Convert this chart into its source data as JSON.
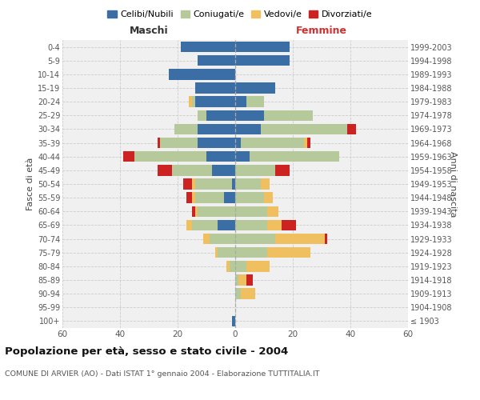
{
  "age_groups": [
    "100+",
    "95-99",
    "90-94",
    "85-89",
    "80-84",
    "75-79",
    "70-74",
    "65-69",
    "60-64",
    "55-59",
    "50-54",
    "45-49",
    "40-44",
    "35-39",
    "30-34",
    "25-29",
    "20-24",
    "15-19",
    "10-14",
    "5-9",
    "0-4"
  ],
  "birth_years": [
    "≤ 1903",
    "1904-1908",
    "1909-1913",
    "1914-1918",
    "1919-1923",
    "1924-1928",
    "1929-1933",
    "1934-1938",
    "1939-1943",
    "1944-1948",
    "1949-1953",
    "1954-1958",
    "1959-1963",
    "1964-1968",
    "1969-1973",
    "1974-1978",
    "1979-1983",
    "1984-1988",
    "1989-1993",
    "1994-1998",
    "1999-2003"
  ],
  "maschi": {
    "celibi": [
      1,
      0,
      0,
      0,
      0,
      0,
      0,
      6,
      0,
      4,
      1,
      8,
      10,
      13,
      13,
      10,
      14,
      14,
      23,
      13,
      19
    ],
    "coniugati": [
      0,
      0,
      0,
      0,
      2,
      6,
      9,
      9,
      13,
      10,
      13,
      14,
      25,
      13,
      8,
      3,
      1,
      0,
      0,
      0,
      0
    ],
    "vedovi": [
      0,
      0,
      0,
      0,
      1,
      1,
      2,
      2,
      1,
      1,
      1,
      0,
      0,
      0,
      0,
      0,
      1,
      0,
      0,
      0,
      0
    ],
    "divorziati": [
      0,
      0,
      0,
      0,
      0,
      0,
      0,
      0,
      1,
      2,
      3,
      5,
      4,
      1,
      0,
      0,
      0,
      0,
      0,
      0,
      0
    ]
  },
  "femmine": {
    "nubili": [
      0,
      0,
      0,
      0,
      0,
      0,
      0,
      0,
      0,
      0,
      0,
      0,
      5,
      2,
      9,
      10,
      4,
      14,
      0,
      19,
      19
    ],
    "coniugate": [
      0,
      0,
      2,
      1,
      4,
      11,
      14,
      11,
      11,
      10,
      9,
      14,
      31,
      22,
      30,
      17,
      6,
      0,
      0,
      0,
      0
    ],
    "vedove": [
      0,
      0,
      5,
      3,
      8,
      15,
      17,
      5,
      4,
      3,
      3,
      0,
      0,
      1,
      0,
      0,
      0,
      0,
      0,
      0,
      0
    ],
    "divorziate": [
      0,
      0,
      0,
      2,
      0,
      0,
      1,
      5,
      0,
      0,
      0,
      5,
      0,
      1,
      3,
      0,
      0,
      0,
      0,
      0,
      0
    ]
  },
  "colors": {
    "celibi": "#3a6ea5",
    "coniugati": "#b5c99a",
    "vedovi": "#f0c060",
    "divorziati": "#cc2222"
  },
  "title": "Popolazione per età, sesso e stato civile - 2004",
  "subtitle": "COMUNE DI ARVIER (AO) - Dati ISTAT 1° gennaio 2004 - Elaborazione TUTTITALIA.IT",
  "xlabel_left": "Maschi",
  "xlabel_right": "Femmine",
  "ylabel_left": "Fasce di età",
  "ylabel_right": "Anni di nascita",
  "xlim": 60,
  "legend_labels": [
    "Celibi/Nubili",
    "Coniugati/e",
    "Vedovi/e",
    "Divorziati/e"
  ],
  "background_color": "#ffffff",
  "plot_bg": "#f0f0f0",
  "grid_color": "#cccccc"
}
